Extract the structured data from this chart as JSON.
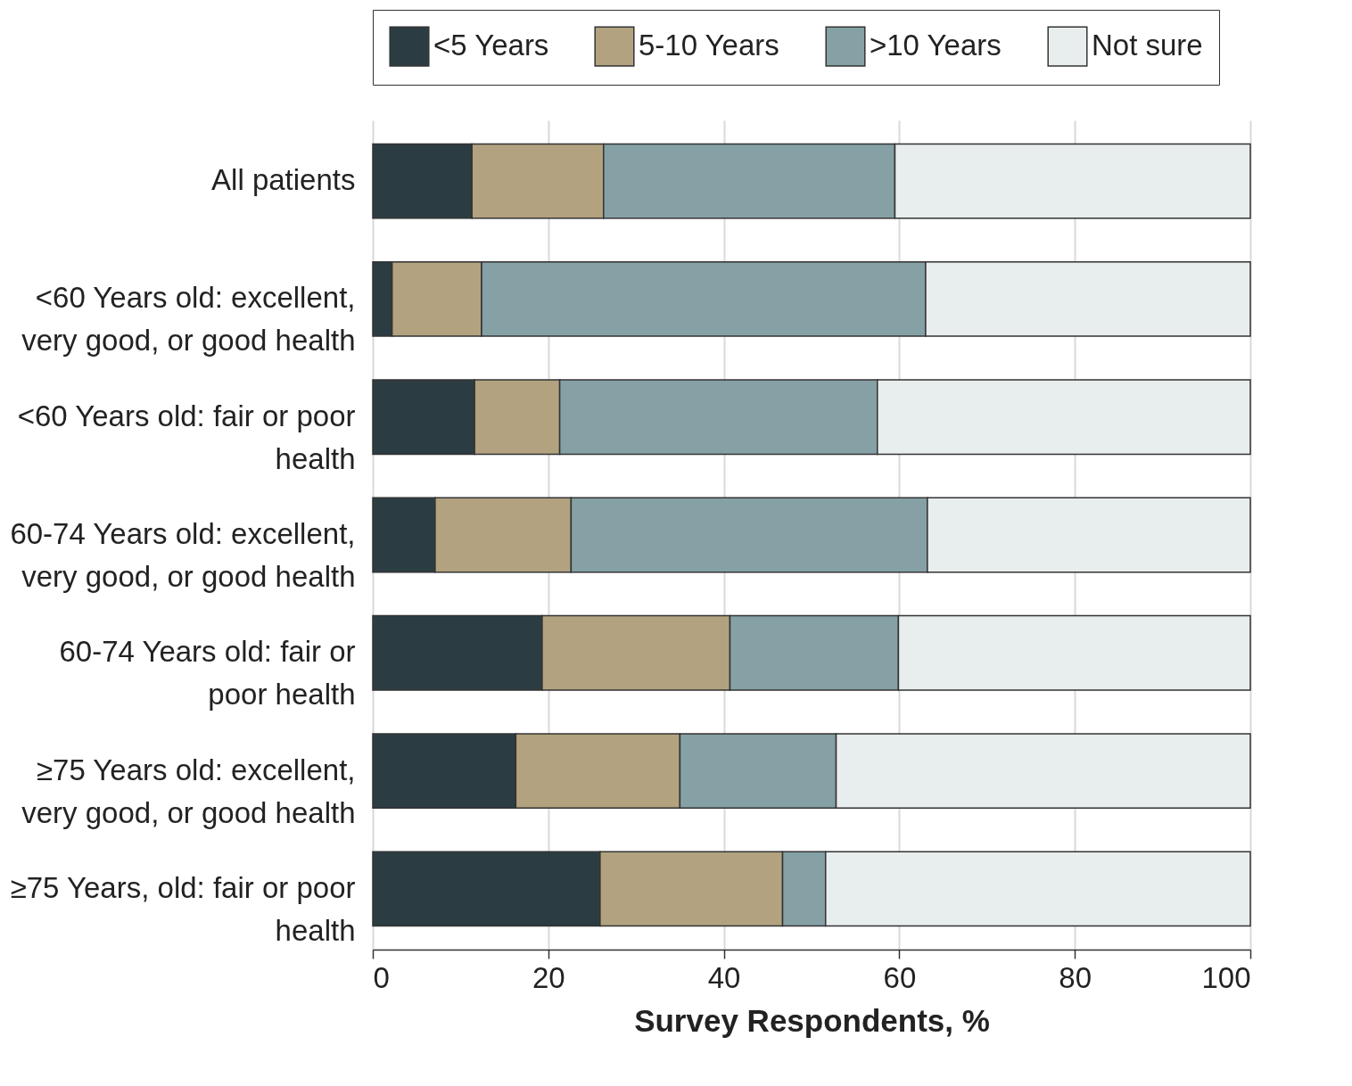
{
  "chart_data": {
    "type": "bar",
    "orientation": "horizontal",
    "stacked": true,
    "xlabel": "Survey Respondents, %",
    "categories": [
      "All patients",
      "<60 Years old: excellent, very good, or good health",
      "<60 Years old: fair or poor health",
      "60-74 Years old: excellent, very good, or good health",
      "60-74 Years old: fair or poor health",
      "≥75 Years old: excellent, very good, or good health",
      "≥75 Years, old: fair or poor health"
    ],
    "series": [
      {
        "name": "<5 Years",
        "color": "#2b3d42",
        "values": [
          11.3,
          2.2,
          11.6,
          7.1,
          19.3,
          16.3,
          25.9
        ]
      },
      {
        "name": "5-10 Years",
        "color": "#b2a27f",
        "values": [
          15.0,
          10.2,
          9.7,
          15.5,
          21.4,
          18.7,
          20.8
        ]
      },
      {
        "name": ">10 Years",
        "color": "#85a1a5",
        "values": [
          33.2,
          50.6,
          36.2,
          40.6,
          19.2,
          17.8,
          4.9
        ]
      },
      {
        "name": "Not sure",
        "color": "#e8eded",
        "values": [
          40.5,
          37.0,
          42.5,
          36.8,
          40.1,
          47.2,
          48.4
        ]
      }
    ],
    "xlim": [
      0,
      100
    ],
    "xticks": [
      0,
      20,
      40,
      60,
      80,
      100
    ],
    "grid": "x",
    "legend": "top"
  }
}
